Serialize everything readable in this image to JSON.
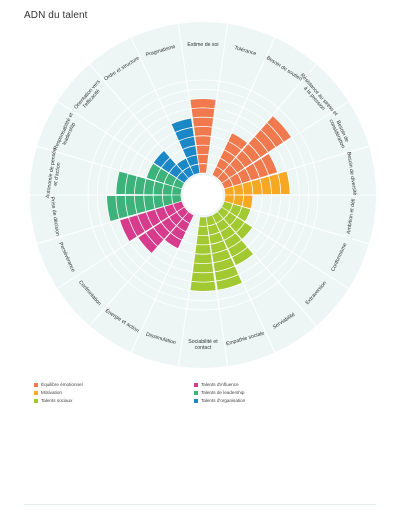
{
  "page": {
    "title": "ADN du talent"
  },
  "colors": {
    "disc": "#edf5f5",
    "ring": "#ffffff",
    "segment_gap": "#ffffff",
    "label_text": "#333333"
  },
  "chart_data": {
    "type": "polar-bar",
    "max_value": 10,
    "rings": 10,
    "categories": [
      {
        "label": "Estime de soi",
        "group": "equilibre",
        "value": 8
      },
      {
        "label": "Tolérance",
        "group": "equilibre",
        "value": 0
      },
      {
        "label": "Besoin de soutien",
        "group": "equilibre",
        "value": 5
      },
      {
        "label": "Résistance au stress et à la pression",
        "group": "equilibre",
        "value": 9
      },
      {
        "label": "Besoin de considération",
        "group": "equilibre",
        "value": 6
      },
      {
        "label": "Besoin de diversité",
        "group": "motivation",
        "value": 7
      },
      {
        "label": "Ambition et défi",
        "group": "motivation",
        "value": 3
      },
      {
        "label": "Conformisme",
        "group": "sociaux",
        "value": 3
      },
      {
        "label": "Extraversion",
        "group": "sociaux",
        "value": 4
      },
      {
        "label": "Serviabilité",
        "group": "sociaux",
        "value": 6
      },
      {
        "label": "Empathie sociale",
        "group": "sociaux",
        "value": 8
      },
      {
        "label": "Sociabilité et contact",
        "group": "sociaux",
        "value": 8
      },
      {
        "label": "Dissimulation",
        "group": "influence",
        "value": 0
      },
      {
        "label": "Énergie et action",
        "group": "influence",
        "value": 4
      },
      {
        "label": "Confrontation",
        "group": "influence",
        "value": 6
      },
      {
        "label": "Persévérance",
        "group": "influence",
        "value": 7
      },
      {
        "label": "Prise de décision",
        "group": "leadership",
        "value": 8
      },
      {
        "label": "Autonomie de pensée et d'action",
        "group": "leadership",
        "value": 7
      },
      {
        "label": "Responsabilité et leadership",
        "group": "leadership",
        "value": 4
      },
      {
        "label": "Orientation vers l'efficacité",
        "group": "organisation",
        "value": 4
      },
      {
        "label": "Ordre et structure",
        "group": "organisation",
        "value": 2
      },
      {
        "label": "Pragmatisme",
        "group": "organisation",
        "value": 6
      }
    ],
    "legend": [
      {
        "key": "equilibre",
        "label": "Équilibre émotionnel",
        "color": "#f07a4e"
      },
      {
        "key": "motivation",
        "label": "Motivation",
        "color": "#f7a823"
      },
      {
        "key": "sociaux",
        "label": "Talents sociaux",
        "color": "#a3c932"
      },
      {
        "key": "influence",
        "label": "Talents d'influence",
        "color": "#d63c8b"
      },
      {
        "key": "leadership",
        "label": "Talents de leadership",
        "color": "#3db27a"
      },
      {
        "key": "organisation",
        "label": "Talents d'organisation",
        "color": "#1b87c6"
      }
    ]
  }
}
